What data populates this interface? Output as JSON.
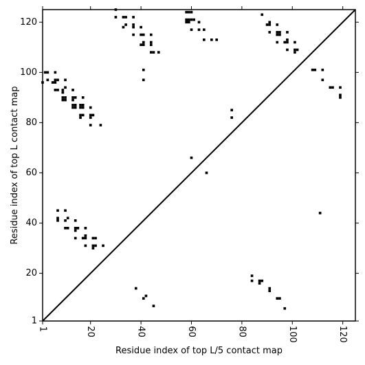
{
  "chart_data": {
    "type": "scatter",
    "title": "",
    "xlabel": "Residue index of top L/5 contact map",
    "ylabel": "Residue index of top L contact map",
    "xlim": [
      1,
      125
    ],
    "ylim": [
      1,
      125
    ],
    "x_ticks": [
      1,
      20,
      40,
      60,
      80,
      100,
      120
    ],
    "y_ticks": [
      1,
      20,
      40,
      60,
      80,
      100,
      120
    ],
    "x_tick_labels": [
      "1",
      "20",
      "40",
      "60",
      "80",
      "100",
      "120"
    ],
    "y_tick_labels": [
      "1",
      "20",
      "40",
      "60",
      "80",
      "100",
      "120"
    ],
    "x_tick_rotation": 90,
    "grid": false,
    "diagonal_line": true,
    "marker_color": "#000000",
    "series": [
      {
        "points": [
          [
            84,
            19
          ],
          [
            84,
            17
          ],
          [
            87,
            17
          ],
          [
            87,
            16
          ],
          [
            88,
            17
          ],
          [
            91,
            14
          ],
          [
            91,
            13
          ],
          [
            94,
            10
          ],
          [
            95,
            10
          ],
          [
            97,
            6
          ],
          [
            38,
            14
          ],
          [
            42,
            11
          ],
          [
            41,
            10
          ],
          [
            45,
            7
          ]
        ]
      },
      {
        "points": [
          [
            30,
            125
          ],
          [
            30,
            122
          ],
          [
            33,
            122
          ],
          [
            34,
            122
          ],
          [
            37,
            122
          ],
          [
            34,
            119
          ],
          [
            33,
            118
          ],
          [
            37,
            119
          ],
          [
            37,
            118
          ],
          [
            40,
            118
          ],
          [
            37,
            115
          ],
          [
            40,
            115
          ],
          [
            41,
            115
          ],
          [
            44,
            115
          ],
          [
            44,
            112
          ],
          [
            44,
            111
          ],
          [
            40,
            111
          ],
          [
            41,
            111
          ],
          [
            41,
            112
          ],
          [
            44,
            108
          ],
          [
            45,
            108
          ],
          [
            47,
            108
          ],
          [
            41,
            101
          ],
          [
            41,
            97
          ],
          [
            58,
            124
          ],
          [
            59,
            124
          ],
          [
            60,
            124
          ],
          [
            58,
            121
          ],
          [
            59,
            121
          ],
          [
            60,
            121
          ],
          [
            58,
            120
          ],
          [
            59,
            120
          ],
          [
            61,
            121
          ],
          [
            63,
            120
          ],
          [
            60,
            117
          ],
          [
            63,
            117
          ],
          [
            65,
            117
          ],
          [
            65,
            113
          ],
          [
            68,
            113
          ],
          [
            70,
            113
          ],
          [
            60,
            66
          ],
          [
            66,
            60
          ],
          [
            88,
            123
          ],
          [
            90,
            119
          ],
          [
            91,
            120
          ],
          [
            91,
            119
          ],
          [
            91,
            116
          ],
          [
            94,
            119
          ],
          [
            94,
            116
          ],
          [
            95,
            116
          ],
          [
            94,
            115
          ],
          [
            95,
            115
          ],
          [
            98,
            116
          ],
          [
            94,
            112
          ],
          [
            97,
            112
          ],
          [
            98,
            113
          ],
          [
            98,
            112
          ],
          [
            101,
            112
          ],
          [
            98,
            109
          ],
          [
            101,
            109
          ],
          [
            101,
            108
          ],
          [
            102,
            109
          ],
          [
            108,
            101
          ],
          [
            109,
            101
          ],
          [
            112,
            101
          ],
          [
            112,
            97
          ],
          [
            115,
            94
          ],
          [
            116,
            94
          ],
          [
            119,
            94
          ],
          [
            119,
            91
          ],
          [
            119,
            90
          ],
          [
            111,
            44
          ],
          [
            76,
            85
          ],
          [
            76,
            82
          ],
          [
            2,
            100
          ],
          [
            3,
            100
          ],
          [
            6,
            100
          ],
          [
            1,
            96
          ],
          [
            3,
            97
          ],
          [
            5,
            96
          ],
          [
            6,
            96
          ],
          [
            6,
            97
          ],
          [
            7,
            97
          ],
          [
            10,
            97
          ],
          [
            6,
            93
          ],
          [
            7,
            93
          ],
          [
            9,
            93
          ],
          [
            10,
            94
          ],
          [
            9,
            92
          ],
          [
            9,
            90
          ],
          [
            10,
            90
          ],
          [
            9,
            89
          ],
          [
            10,
            89
          ],
          [
            13,
            93
          ],
          [
            13,
            90
          ],
          [
            14,
            90
          ],
          [
            13,
            89
          ],
          [
            13,
            87
          ],
          [
            14,
            87
          ],
          [
            13,
            86
          ],
          [
            14,
            86
          ],
          [
            17,
            90
          ],
          [
            16,
            87
          ],
          [
            17,
            87
          ],
          [
            16,
            86
          ],
          [
            17,
            86
          ],
          [
            20,
            86
          ],
          [
            16,
            83
          ],
          [
            17,
            83
          ],
          [
            16,
            82
          ],
          [
            20,
            83
          ],
          [
            21,
            83
          ],
          [
            20,
            82
          ],
          [
            20,
            79
          ],
          [
            24,
            79
          ],
          [
            7,
            45
          ],
          [
            10,
            45
          ],
          [
            7,
            42
          ],
          [
            7,
            41
          ],
          [
            10,
            41
          ],
          [
            11,
            42
          ],
          [
            14,
            41
          ],
          [
            10,
            38
          ],
          [
            11,
            38
          ],
          [
            14,
            38
          ],
          [
            15,
            38
          ],
          [
            14,
            37
          ],
          [
            18,
            38
          ],
          [
            14,
            34
          ],
          [
            17,
            34
          ],
          [
            18,
            34
          ],
          [
            18,
            35
          ],
          [
            21,
            34
          ],
          [
            22,
            34
          ],
          [
            18,
            31
          ],
          [
            21,
            31
          ],
          [
            21,
            30
          ],
          [
            22,
            31
          ],
          [
            25,
            31
          ]
        ]
      }
    ]
  }
}
